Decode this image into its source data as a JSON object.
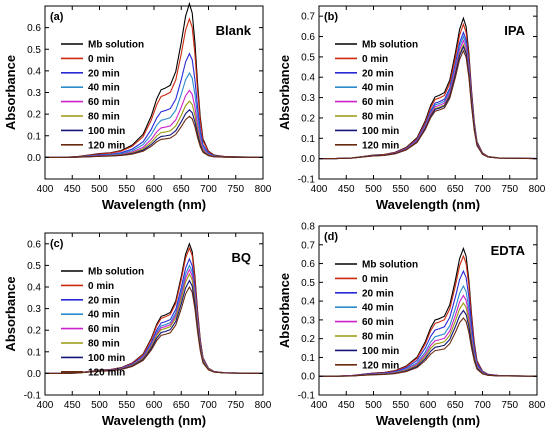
{
  "colors": {
    "Mb solution": "#000000",
    "0 min": "#cc2a10",
    "20 min": "#2a2ad8",
    "40 min": "#2a8acc",
    "60 min": "#cc22cc",
    "80 min": "#9a9a10",
    "100 min": "#15157a",
    "120 min": "#6a2a10"
  },
  "chart_data": [
    {
      "type": "line",
      "panel": "(a)",
      "title": "Blank",
      "xlabel": "Wavelength (nm)",
      "ylabel": "Absorbance",
      "xlim": [
        400,
        800
      ],
      "ylim": [
        -0.1,
        0.7
      ],
      "xticks": [
        400,
        450,
        500,
        550,
        600,
        650,
        700,
        750,
        800
      ],
      "xtick_labels": [
        "400",
        "450",
        "500",
        "550",
        "600",
        "650",
        "700",
        "750",
        "800"
      ],
      "yticks": [
        0.0,
        0.1,
        0.2,
        0.3,
        0.4,
        0.5,
        0.6
      ],
      "ytick_labels": [
        "0.0",
        "0.1",
        "0.2",
        "0.3",
        "0.4",
        "0.5",
        "0.6"
      ],
      "grid": false,
      "legend_position": "top-left",
      "series": [
        {
          "name": "Mb solution",
          "peak": 0.71
        },
        {
          "name": "0 min",
          "peak": 0.64
        },
        {
          "name": "20 min",
          "peak": 0.48
        },
        {
          "name": "40 min",
          "peak": 0.39
        },
        {
          "name": "60 min",
          "peak": 0.31
        },
        {
          "name": "80 min",
          "peak": 0.26
        },
        {
          "name": "100 min",
          "peak": 0.22
        },
        {
          "name": "120 min",
          "peak": 0.19
        }
      ]
    },
    {
      "type": "line",
      "panel": "(b)",
      "title": "IPA",
      "xlabel": "Wavelength (nm)",
      "ylabel": "Absorbance",
      "xlim": [
        400,
        800
      ],
      "ylim": [
        -0.1,
        0.75
      ],
      "xticks": [
        400,
        450,
        500,
        550,
        600,
        650,
        700,
        750,
        800
      ],
      "xtick_labels": [
        "400",
        "450",
        "500",
        "550",
        "600",
        "650",
        "700",
        "750",
        "800"
      ],
      "yticks": [
        -0.1,
        0.0,
        0.1,
        0.2,
        0.3,
        0.4,
        0.5,
        0.6,
        0.7
      ],
      "ytick_labels": [
        "-0.1",
        "0.0",
        "0.1",
        "0.2",
        "0.3",
        "0.4",
        "0.5",
        "0.6",
        "0.7"
      ],
      "grid": false,
      "legend_position": "top-left",
      "series": [
        {
          "name": "Mb solution",
          "peak": 0.69
        },
        {
          "name": "0 min",
          "peak": 0.66
        },
        {
          "name": "20 min",
          "peak": 0.62
        },
        {
          "name": "40 min",
          "peak": 0.6
        },
        {
          "name": "60 min",
          "peak": 0.58
        },
        {
          "name": "80 min",
          "peak": 0.56
        },
        {
          "name": "100 min",
          "peak": 0.55
        },
        {
          "name": "120 min",
          "peak": 0.53
        }
      ]
    },
    {
      "type": "line",
      "panel": "(c)",
      "title": "BQ",
      "xlabel": "Wavelength (nm)",
      "ylabel": "Absorbance",
      "xlim": [
        400,
        800
      ],
      "ylim": [
        -0.1,
        0.65
      ],
      "xticks": [
        400,
        450,
        500,
        550,
        600,
        650,
        700,
        750,
        800
      ],
      "xtick_labels": [
        "400",
        "450",
        "500",
        "550",
        "600",
        "650",
        "700",
        "750",
        "800"
      ],
      "yticks": [
        -0.1,
        0.0,
        0.1,
        0.2,
        0.3,
        0.4,
        0.5,
        0.6
      ],
      "ytick_labels": [
        "-0.1",
        "0.0",
        "0.1",
        "0.2",
        "0.3",
        "0.4",
        "0.5",
        "0.6"
      ],
      "grid": false,
      "legend_position": "top-left",
      "series": [
        {
          "name": "Mb solution",
          "peak": 0.6
        },
        {
          "name": "0 min",
          "peak": 0.58
        },
        {
          "name": "20 min",
          "peak": 0.53
        },
        {
          "name": "40 min",
          "peak": 0.5
        },
        {
          "name": "60 min",
          "peak": 0.48
        },
        {
          "name": "80 min",
          "peak": 0.46
        },
        {
          "name": "100 min",
          "peak": 0.43
        },
        {
          "name": "120 min",
          "peak": 0.4
        }
      ]
    },
    {
      "type": "line",
      "panel": "(d)",
      "title": "EDTA",
      "xlabel": "Wavelength (nm)",
      "ylabel": "Absorbance",
      "xlim": [
        400,
        800
      ],
      "ylim": [
        -0.1,
        0.8
      ],
      "xticks": [
        400,
        450,
        500,
        550,
        600,
        650,
        700,
        750,
        800
      ],
      "xtick_labels": [
        "400",
        "450",
        "500",
        "550",
        "600",
        "650",
        "700",
        "750",
        "800"
      ],
      "yticks": [
        -0.1,
        0.0,
        0.1,
        0.2,
        0.3,
        0.4,
        0.5,
        0.6,
        0.7,
        0.8
      ],
      "ytick_labels": [
        "-0.1",
        "0.0",
        "0.1",
        "0.2",
        "0.3",
        "0.4",
        "0.5",
        "0.6",
        "0.7",
        "0.8"
      ],
      "grid": false,
      "legend_position": "top-left",
      "series": [
        {
          "name": "Mb solution",
          "peak": 0.68
        },
        {
          "name": "0 min",
          "peak": 0.64
        },
        {
          "name": "20 min",
          "peak": 0.56
        },
        {
          "name": "40 min",
          "peak": 0.48
        },
        {
          "name": "60 min",
          "peak": 0.43
        },
        {
          "name": "80 min",
          "peak": 0.39
        },
        {
          "name": "100 min",
          "peak": 0.35
        },
        {
          "name": "120 min",
          "peak": 0.31
        }
      ]
    }
  ]
}
